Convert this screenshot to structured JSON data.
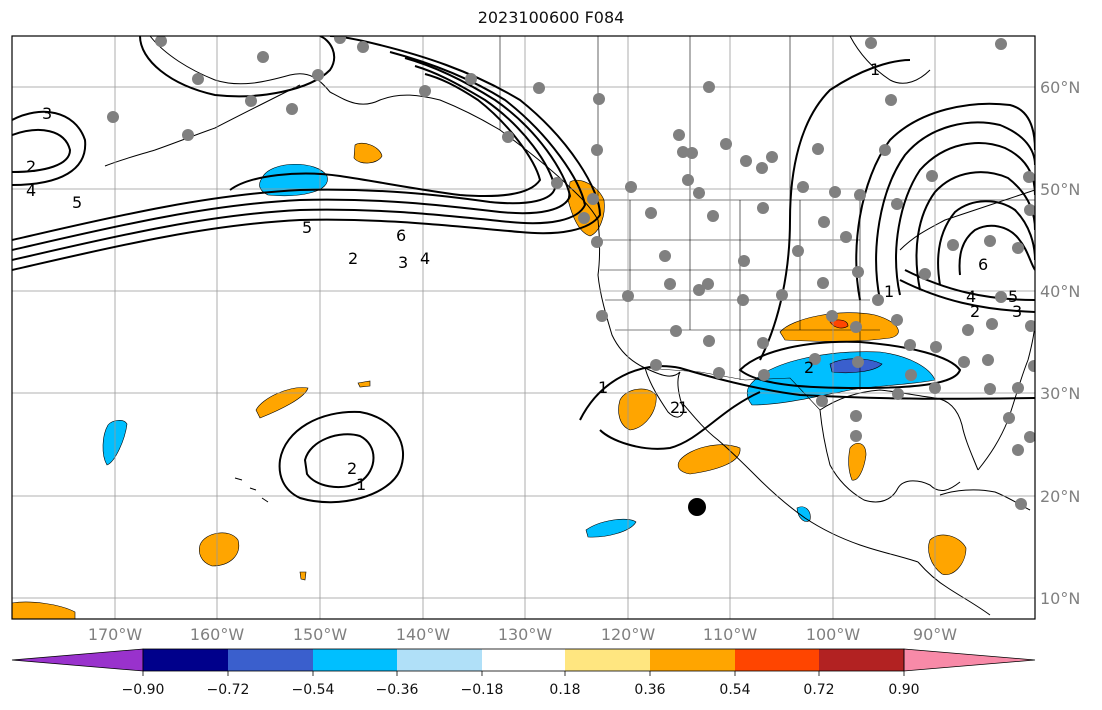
{
  "title": "2023100600 F084",
  "map": {
    "projection": "PlateCarree",
    "lon_range": [
      180,
      80
    ],
    "lat_range": [
      8,
      65
    ],
    "lon_ticks": [
      "170°W",
      "160°W",
      "150°W",
      "140°W",
      "130°W",
      "120°W",
      "110°W",
      "100°W",
      "90°W"
    ],
    "lat_ticks": [
      "10°N",
      "20°N",
      "30°N",
      "40°N",
      "50°N",
      "60°N"
    ],
    "grid": true,
    "colors": {
      "coast": "#000000",
      "grid": "#999999",
      "contour": "#000000",
      "station": "#808080",
      "marker": "#000000"
    }
  },
  "contour_labels": [
    "3",
    "2",
    "4",
    "5",
    "5",
    "6",
    "2",
    "3",
    "4",
    "1",
    "2",
    "1",
    "2",
    "1",
    "6",
    "1",
    "2",
    "3",
    "4",
    "5",
    "2",
    "1"
  ],
  "shading": {
    "positive_colors": [
      "#ffe680",
      "#ffa500",
      "#ff4500",
      "#b22222",
      "#f88aa8"
    ],
    "negative_colors": [
      "#b0e0f8",
      "#00bfff",
      "#3a5fcd",
      "#00008b",
      "#9932cc"
    ]
  },
  "colorbar": {
    "labels": [
      "−0.90",
      "−0.72",
      "−0.54",
      "−0.36",
      "−0.18",
      "0.18",
      "0.36",
      "0.54",
      "0.72",
      "0.90"
    ],
    "colors": [
      "#9932cc",
      "#00008b",
      "#3a5fcd",
      "#00bfff",
      "#b0e0f8",
      "#ffffff",
      "#ffe680",
      "#ffa500",
      "#ff4500",
      "#b22222",
      "#f88aa8"
    ]
  }
}
